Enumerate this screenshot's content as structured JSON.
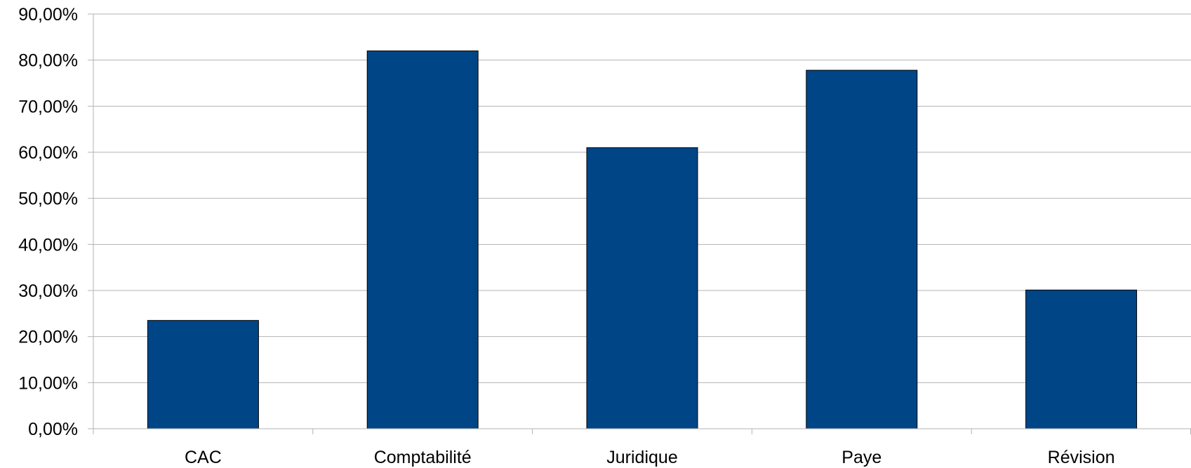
{
  "chart_data": {
    "type": "bar",
    "categories": [
      "CAC",
      "Comptabilité",
      "Juridique",
      "Paye",
      "Révision"
    ],
    "values": [
      23.5,
      82.0,
      61.0,
      77.8,
      30.1
    ],
    "y_ticks": [
      "0,00%",
      "10,00%",
      "20,00%",
      "30,00%",
      "40,00%",
      "50,00%",
      "60,00%",
      "70,00%",
      "80,00%",
      "90,00%"
    ],
    "y_tick_values": [
      0,
      10,
      20,
      30,
      40,
      50,
      60,
      70,
      80,
      90
    ],
    "ylim": [
      0,
      90
    ],
    "y_unit": "%",
    "grid": true,
    "legend": "none",
    "bar_color": "#004586"
  }
}
